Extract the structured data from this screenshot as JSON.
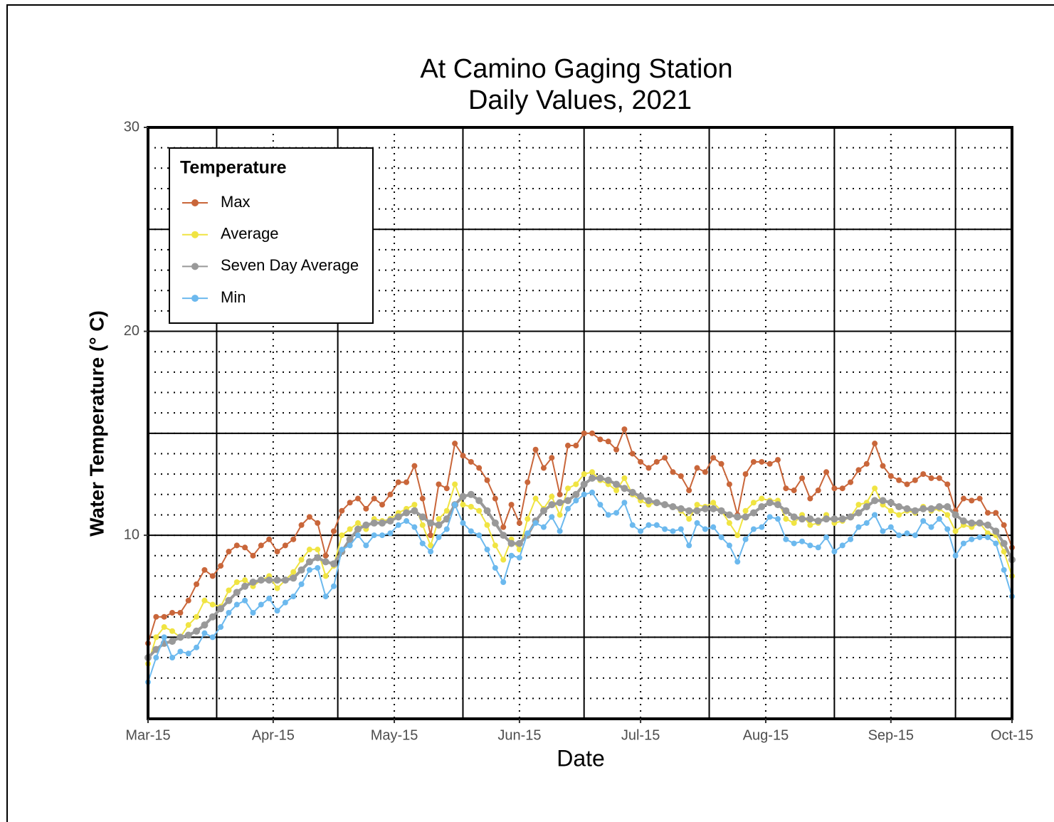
{
  "chart_data": {
    "type": "line",
    "title": [
      "At Camino Gaging Station",
      "Daily Values, 2021"
    ],
    "x_label": "Date",
    "y_label": "Water Temperature (° C)",
    "legend_title": "Temperature",
    "legend_position": "top-left",
    "x": [
      "2021-03-15",
      "2021-03-17",
      "2021-03-19",
      "2021-03-21",
      "2021-03-23",
      "2021-03-25",
      "2021-03-27",
      "2021-03-29",
      "2021-03-31",
      "2021-04-02",
      "2021-04-04",
      "2021-04-06",
      "2021-04-08",
      "2021-04-10",
      "2021-04-12",
      "2021-04-14",
      "2021-04-16",
      "2021-04-18",
      "2021-04-20",
      "2021-04-22",
      "2021-04-24",
      "2021-04-26",
      "2021-04-28",
      "2021-04-30",
      "2021-05-02",
      "2021-05-04",
      "2021-05-06",
      "2021-05-08",
      "2021-05-10",
      "2021-05-12",
      "2021-05-14",
      "2021-05-16",
      "2021-05-18",
      "2021-05-20",
      "2021-05-22",
      "2021-05-24",
      "2021-05-26",
      "2021-05-28",
      "2021-05-30",
      "2021-06-01",
      "2021-06-03",
      "2021-06-05",
      "2021-06-07",
      "2021-06-09",
      "2021-06-11",
      "2021-06-13",
      "2021-06-15",
      "2021-06-17",
      "2021-06-19",
      "2021-06-21",
      "2021-06-23",
      "2021-06-25",
      "2021-06-27",
      "2021-06-29",
      "2021-07-01",
      "2021-07-03",
      "2021-07-05",
      "2021-07-07",
      "2021-07-09",
      "2021-07-11",
      "2021-07-13",
      "2021-07-15",
      "2021-07-17",
      "2021-07-19",
      "2021-07-21",
      "2021-07-23",
      "2021-07-25",
      "2021-07-27",
      "2021-07-29",
      "2021-07-31",
      "2021-08-02",
      "2021-08-04",
      "2021-08-06",
      "2021-08-08",
      "2021-08-10",
      "2021-08-12",
      "2021-08-14",
      "2021-08-16",
      "2021-08-18",
      "2021-08-20",
      "2021-08-22",
      "2021-08-24",
      "2021-08-26",
      "2021-08-28",
      "2021-08-30",
      "2021-09-01",
      "2021-09-03",
      "2021-09-05",
      "2021-09-07",
      "2021-09-09",
      "2021-09-11",
      "2021-09-13",
      "2021-09-15",
      "2021-09-17",
      "2021-09-19",
      "2021-09-21",
      "2021-09-23",
      "2021-09-25",
      "2021-09-27",
      "2021-09-29",
      "2021-10-01",
      "2021-10-03",
      "2021-10-05",
      "2021-10-07",
      "2021-10-09",
      "2021-10-11",
      "2021-10-13",
      "2021-10-15"
    ],
    "series": [
      {
        "name": "Max",
        "color": "#c9663a",
        "values": [
          4.7,
          6.0,
          6.0,
          6.2,
          6.2,
          6.8,
          7.6,
          8.3,
          8.0,
          8.5,
          9.2,
          9.5,
          9.4,
          9.0,
          9.5,
          9.8,
          9.2,
          9.5,
          9.8,
          10.5,
          10.9,
          10.6,
          9.0,
          10.2,
          11.2,
          11.6,
          11.8,
          11.3,
          11.8,
          11.5,
          12.0,
          12.6,
          12.6,
          13.4,
          11.8,
          10.0,
          12.5,
          12.3,
          14.5,
          13.9,
          13.6,
          13.3,
          12.7,
          11.8,
          10.4,
          11.5,
          10.6,
          12.6,
          14.2,
          13.3,
          13.8,
          12.0,
          14.4,
          14.4,
          15.0,
          15.0,
          14.7,
          14.6,
          14.2,
          15.2,
          14.0,
          13.6,
          13.3,
          13.6,
          13.8,
          13.1,
          12.9,
          12.2,
          13.3,
          13.1,
          13.8,
          13.5,
          12.5,
          11.0,
          13.0,
          13.6,
          13.6,
          13.5,
          13.7,
          12.3,
          12.2,
          12.8,
          11.8,
          12.2,
          13.1,
          12.3,
          12.3,
          12.6,
          13.2,
          13.5,
          14.5,
          13.4,
          12.9,
          12.7,
          12.5,
          12.7,
          13.0,
          12.8,
          12.8,
          12.5,
          11.2,
          11.8,
          11.7,
          11.8,
          11.1,
          11.1,
          10.5,
          9.4
        ]
      },
      {
        "name": "Average",
        "color": "#f0e442",
        "values": [
          3.7,
          5.0,
          5.5,
          5.3,
          5.0,
          5.6,
          6.0,
          6.8,
          6.6,
          6.5,
          7.3,
          7.7,
          7.8,
          7.5,
          7.8,
          8.0,
          7.4,
          7.8,
          8.2,
          8.8,
          9.3,
          9.3,
          8.0,
          8.5,
          10.0,
          10.3,
          10.6,
          10.3,
          10.8,
          10.7,
          10.8,
          11.1,
          11.3,
          11.5,
          10.5,
          9.5,
          10.8,
          11.2,
          12.5,
          11.5,
          11.4,
          11.2,
          10.5,
          9.5,
          8.8,
          9.8,
          9.3,
          10.8,
          11.8,
          11.3,
          11.9,
          11.0,
          12.3,
          12.5,
          13.0,
          13.1,
          12.7,
          12.5,
          12.2,
          12.8,
          12.0,
          11.7,
          11.5,
          11.6,
          11.5,
          11.4,
          11.2,
          10.8,
          11.5,
          11.4,
          11.6,
          11.2,
          10.6,
          10.0,
          11.2,
          11.6,
          11.8,
          11.7,
          11.7,
          10.8,
          10.6,
          11.0,
          10.5,
          10.6,
          11.0,
          10.6,
          10.7,
          10.9,
          11.5,
          11.6,
          12.3,
          11.5,
          11.2,
          11.0,
          11.2,
          11.1,
          11.4,
          11.2,
          11.3,
          11.0,
          10.2,
          10.5,
          10.4,
          10.6,
          10.1,
          10.0,
          9.2,
          8.0
        ]
      },
      {
        "name": "Seven Day Average",
        "color": "#999999",
        "values": [
          4.0,
          4.4,
          4.7,
          4.8,
          5.0,
          5.1,
          5.3,
          5.6,
          6.0,
          6.4,
          6.8,
          7.2,
          7.5,
          7.7,
          7.8,
          7.8,
          7.8,
          7.8,
          7.9,
          8.3,
          8.7,
          8.9,
          8.7,
          8.6,
          9.2,
          9.8,
          10.3,
          10.5,
          10.6,
          10.6,
          10.7,
          10.9,
          11.1,
          11.2,
          10.9,
          10.6,
          10.5,
          10.8,
          11.5,
          11.9,
          12.0,
          11.7,
          11.2,
          10.6,
          10.0,
          9.6,
          9.6,
          10.0,
          10.7,
          11.2,
          11.5,
          11.6,
          11.7,
          12.0,
          12.5,
          12.8,
          12.8,
          12.7,
          12.5,
          12.3,
          12.1,
          11.9,
          11.7,
          11.6,
          11.5,
          11.4,
          11.3,
          11.2,
          11.2,
          11.3,
          11.3,
          11.2,
          11.0,
          10.9,
          10.9,
          11.1,
          11.4,
          11.6,
          11.5,
          11.2,
          10.9,
          10.8,
          10.8,
          10.7,
          10.8,
          10.8,
          10.8,
          10.9,
          11.1,
          11.4,
          11.7,
          11.7,
          11.6,
          11.4,
          11.3,
          11.2,
          11.3,
          11.3,
          11.4,
          11.4,
          11.0,
          10.7,
          10.6,
          10.6,
          10.5,
          10.2,
          9.6,
          8.8
        ]
      },
      {
        "name": "Min",
        "color": "#6cb9ee",
        "values": [
          2.8,
          4.0,
          5.0,
          4.0,
          4.3,
          4.2,
          4.5,
          5.2,
          5.0,
          5.5,
          6.2,
          6.6,
          6.8,
          6.2,
          6.6,
          6.9,
          6.3,
          6.7,
          7.0,
          7.6,
          8.3,
          8.4,
          7.0,
          7.5,
          9.3,
          9.5,
          10.0,
          9.5,
          10.0,
          10.0,
          10.1,
          10.5,
          10.7,
          10.4,
          9.6,
          9.2,
          9.9,
          10.3,
          11.5,
          10.6,
          10.2,
          10.0,
          9.3,
          8.4,
          7.7,
          9.0,
          8.9,
          10.1,
          10.6,
          10.4,
          10.9,
          10.2,
          11.3,
          11.7,
          12.0,
          12.1,
          11.5,
          11.0,
          11.1,
          11.6,
          10.5,
          10.2,
          10.5,
          10.5,
          10.3,
          10.2,
          10.3,
          9.5,
          10.6,
          10.3,
          10.4,
          9.9,
          9.5,
          8.7,
          9.8,
          10.3,
          10.4,
          10.9,
          10.8,
          9.8,
          9.6,
          9.7,
          9.5,
          9.4,
          9.9,
          9.2,
          9.5,
          9.8,
          10.4,
          10.6,
          11.0,
          10.2,
          10.4,
          10.0,
          10.1,
          10.0,
          10.7,
          10.4,
          10.8,
          10.3,
          9.0,
          9.6,
          9.8,
          9.9,
          9.9,
          9.6,
          8.3,
          7.0
        ]
      }
    ],
    "xlim": [
      "2021-03-15",
      "2021-10-15"
    ],
    "xticks": [
      {
        "value": "2021-03-15",
        "label": "Mar-15"
      },
      {
        "value": "2021-04-15",
        "label": "Apr-15"
      },
      {
        "value": "2021-05-15",
        "label": "May-15"
      },
      {
        "value": "2021-06-15",
        "label": "Jun-15"
      },
      {
        "value": "2021-07-15",
        "label": "Jul-15"
      },
      {
        "value": "2021-08-15",
        "label": "Aug-15"
      },
      {
        "value": "2021-09-15",
        "label": "Sep-15"
      },
      {
        "value": "2021-10-15",
        "label": "Oct-15"
      }
    ],
    "x_minor_grid": [
      "2021-04-01",
      "2021-05-01",
      "2021-06-01",
      "2021-07-01",
      "2021-08-01",
      "2021-09-01",
      "2021-10-01"
    ],
    "ylim": [
      1,
      30
    ],
    "yticks": [
      10,
      20,
      30
    ],
    "y_minor_grid": [
      5,
      15,
      25
    ],
    "grid": true
  }
}
